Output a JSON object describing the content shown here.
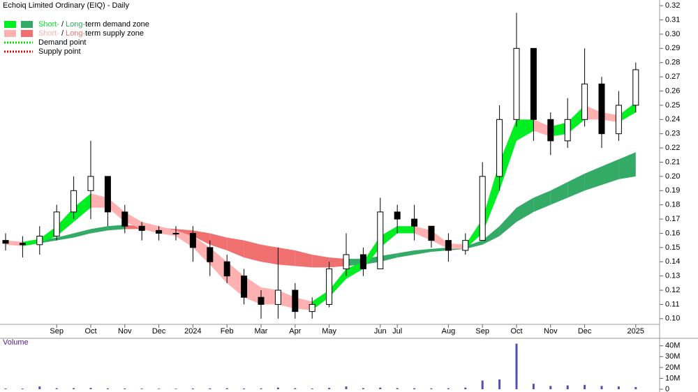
{
  "chart_data": [
    {
      "type": "candlestick",
      "title": "Echoiq Limited Ordinary (EIQ) - Daily",
      "categories": [
        null,
        null,
        null,
        "Sep",
        null,
        "Oct",
        null,
        "Nov",
        null,
        "Dec",
        null,
        "2024",
        null,
        "Feb",
        null,
        "Mar",
        null,
        "Apr",
        null,
        "May",
        null,
        null,
        "Jun",
        "Jul",
        null,
        null,
        "Aug",
        null,
        "Sep",
        null,
        "Oct",
        null,
        "Nov",
        null,
        "Dec",
        null,
        null,
        "2025"
      ],
      "open": [
        0.155,
        0.153,
        0.152,
        0.158,
        0.175,
        0.19,
        0.2,
        0.175,
        0.165,
        0.162,
        0.16,
        0.16,
        0.15,
        0.14,
        0.13,
        0.115,
        0.11,
        0.12,
        0.105,
        0.11,
        0.135,
        0.145,
        0.135,
        0.175,
        0.17,
        0.165,
        0.155,
        0.148,
        0.155,
        0.2,
        0.24,
        0.29,
        0.24,
        0.225,
        0.24,
        0.265,
        0.23,
        0.25
      ],
      "high": [
        0.16,
        0.158,
        0.165,
        0.18,
        0.2,
        0.225,
        0.2,
        0.18,
        0.168,
        0.165,
        0.165,
        0.165,
        0.155,
        0.145,
        0.135,
        0.12,
        0.15,
        0.125,
        0.115,
        0.14,
        0.16,
        0.15,
        0.185,
        0.18,
        0.18,
        0.165,
        0.16,
        0.16,
        0.21,
        0.25,
        0.315,
        0.29,
        0.245,
        0.255,
        0.29,
        0.27,
        0.26,
        0.28
      ],
      "low": [
        0.148,
        0.143,
        0.145,
        0.155,
        0.17,
        0.17,
        0.165,
        0.16,
        0.155,
        0.155,
        0.155,
        0.14,
        0.13,
        0.125,
        0.11,
        0.1,
        0.1,
        0.1,
        0.1,
        0.108,
        0.13,
        0.13,
        0.135,
        0.16,
        0.155,
        0.15,
        0.14,
        0.145,
        0.155,
        0.19,
        0.235,
        0.225,
        0.215,
        0.22,
        0.235,
        0.22,
        0.225,
        0.245
      ],
      "close": [
        0.153,
        0.152,
        0.158,
        0.175,
        0.19,
        0.2,
        0.175,
        0.165,
        0.162,
        0.16,
        0.16,
        0.15,
        0.14,
        0.13,
        0.115,
        0.11,
        0.12,
        0.105,
        0.11,
        0.135,
        0.145,
        0.135,
        0.175,
        0.17,
        0.165,
        0.155,
        0.148,
        0.155,
        0.2,
        0.24,
        0.29,
        0.24,
        0.225,
        0.24,
        0.265,
        0.23,
        0.25,
        0.275
      ],
      "short_zone": {
        "upper": [
          0.155,
          0.154,
          0.156,
          0.165,
          0.178,
          0.188,
          0.185,
          0.175,
          0.168,
          0.165,
          0.162,
          0.158,
          0.15,
          0.14,
          0.13,
          0.122,
          0.12,
          0.115,
          0.112,
          0.12,
          0.135,
          0.14,
          0.158,
          0.165,
          0.165,
          0.162,
          0.153,
          0.152,
          0.17,
          0.21,
          0.24,
          0.24,
          0.235,
          0.238,
          0.25,
          0.245,
          0.243,
          0.252
        ],
        "lower": [
          0.152,
          0.151,
          0.153,
          0.158,
          0.168,
          0.178,
          0.178,
          0.168,
          0.163,
          0.16,
          0.158,
          0.15,
          0.138,
          0.125,
          0.115,
          0.11,
          0.11,
          0.107,
          0.106,
          0.115,
          0.128,
          0.135,
          0.15,
          0.16,
          0.16,
          0.155,
          0.149,
          0.149,
          0.16,
          0.19,
          0.225,
          0.232,
          0.228,
          0.23,
          0.24,
          0.24,
          0.238,
          0.245
        ]
      },
      "long_zone": {
        "upper": [
          0.154,
          0.154,
          0.155,
          0.157,
          0.16,
          0.163,
          0.165,
          0.166,
          0.165,
          0.164,
          0.163,
          0.162,
          0.16,
          0.157,
          0.155,
          0.152,
          0.15,
          0.148,
          0.145,
          0.143,
          0.142,
          0.142,
          0.144,
          0.146,
          0.148,
          0.149,
          0.15,
          0.151,
          0.155,
          0.165,
          0.178,
          0.185,
          0.19,
          0.196,
          0.202,
          0.207,
          0.212,
          0.217
        ],
        "lower": [
          0.152,
          0.152,
          0.153,
          0.155,
          0.157,
          0.16,
          0.162,
          0.163,
          0.163,
          0.162,
          0.161,
          0.158,
          0.152,
          0.148,
          0.143,
          0.14,
          0.138,
          0.137,
          0.136,
          0.136,
          0.137,
          0.138,
          0.14,
          0.143,
          0.145,
          0.147,
          0.148,
          0.149,
          0.152,
          0.158,
          0.168,
          0.175,
          0.18,
          0.185,
          0.19,
          0.194,
          0.198,
          0.2
        ]
      },
      "legend": [
        {
          "parts": [
            "Short-",
            "/",
            "Long-",
            "term demand zone"
          ],
          "short_color": "#00ee22",
          "long_color": "#33aa66"
        },
        {
          "parts": [
            "Short-",
            "/",
            "Long-",
            "term supply zone"
          ],
          "short_color": "#ffb0b0",
          "long_color": "#f07070"
        },
        {
          "text": "Demand point",
          "color": "#00dd00"
        },
        {
          "text": "Supply point",
          "color": "#dd0000"
        }
      ],
      "ylim": [
        0.096,
        0.324
      ],
      "yticks": [
        {
          "value": 0.1,
          "label": "0.10"
        },
        {
          "value": 0.11,
          "label": "0.11"
        },
        {
          "value": 0.12,
          "label": "0.12"
        },
        {
          "value": 0.13,
          "label": "0.13"
        },
        {
          "value": 0.14,
          "label": "0.14"
        },
        {
          "value": 0.15,
          "label": "0.15"
        },
        {
          "value": 0.16,
          "label": "0.16"
        },
        {
          "value": 0.17,
          "label": "0.17"
        },
        {
          "value": 0.18,
          "label": "0.18"
        },
        {
          "value": 0.19,
          "label": "0.19"
        },
        {
          "value": 0.2,
          "label": "0.20"
        },
        {
          "value": 0.21,
          "label": "0.21"
        },
        {
          "value": 0.22,
          "label": "0.22"
        },
        {
          "value": 0.23,
          "label": "0.23"
        },
        {
          "value": 0.24,
          "label": "0.24"
        },
        {
          "value": 0.25,
          "label": "0.25"
        },
        {
          "value": 0.26,
          "label": "0.26"
        },
        {
          "value": 0.27,
          "label": "0.27"
        },
        {
          "value": 0.28,
          "label": "0.28"
        },
        {
          "value": 0.29,
          "label": "0.29"
        },
        {
          "value": 0.3,
          "label": "0.30"
        },
        {
          "value": 0.31,
          "label": "0.31"
        },
        {
          "value": 0.32,
          "label": "0.32"
        }
      ]
    },
    {
      "type": "bar",
      "title": "Volume",
      "color": "#5050b8",
      "values": [
        700000,
        600000,
        2500000,
        900000,
        1000000,
        1200000,
        800000,
        700000,
        600000,
        500000,
        500000,
        700000,
        800000,
        900000,
        700000,
        800000,
        1500000,
        900000,
        700000,
        1200000,
        2500000,
        1000000,
        1500000,
        1000000,
        900000,
        800000,
        900000,
        1500000,
        8000000,
        9000000,
        42000000,
        5000000,
        3000000,
        3500000,
        4000000,
        3000000,
        2500000,
        2000000
      ],
      "ylim": [
        0,
        45000000
      ],
      "yticks": [
        {
          "value": 0,
          "label": "0"
        },
        {
          "value": 10000000,
          "label": "10M"
        },
        {
          "value": 20000000,
          "label": "20M"
        },
        {
          "value": 30000000,
          "label": "30M"
        },
        {
          "value": 40000000,
          "label": "40M"
        }
      ]
    }
  ]
}
